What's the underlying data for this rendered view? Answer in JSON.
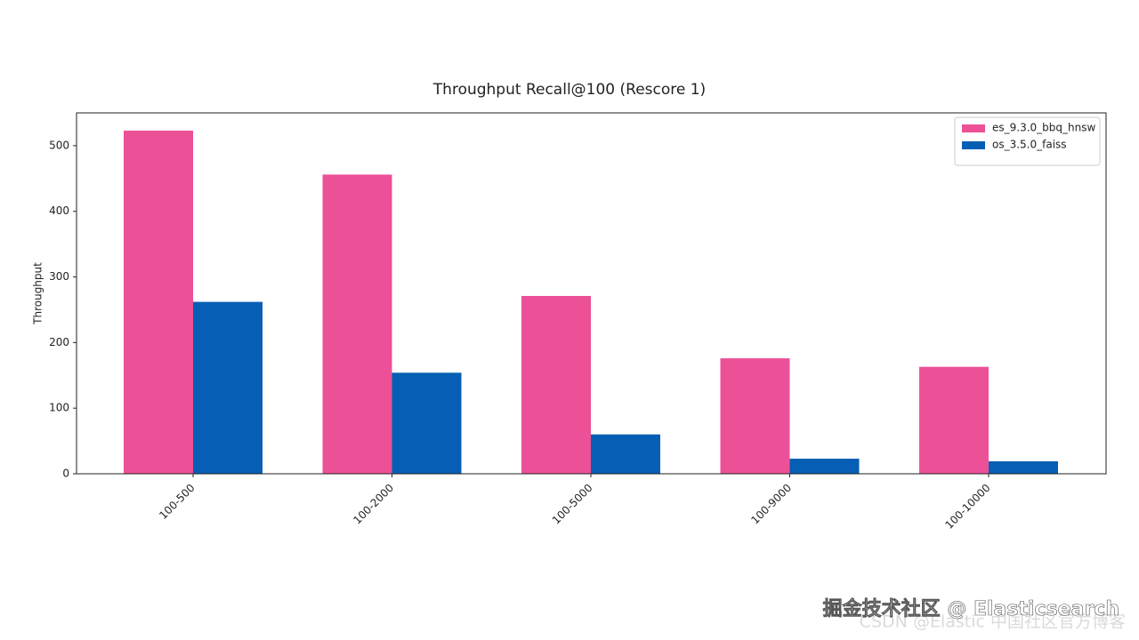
{
  "chart_data": {
    "type": "bar",
    "title": "Throughput Recall@100 (Rescore 1)",
    "y_label": "Throughput",
    "categories": [
      "100-500",
      "100-2000",
      "100-5000",
      "100-9000",
      "100-10000"
    ],
    "series": [
      {
        "name": "es_9.3.0_bbq_hnsw",
        "color": "#ec5198",
        "values": [
          523,
          456,
          271,
          176,
          163
        ]
      },
      {
        "name": "os_3.5.0_faiss",
        "color": "#065fb4",
        "values": [
          262,
          154,
          60,
          23,
          19
        ]
      }
    ],
    "ylim": [
      0,
      550
    ],
    "yticks": [
      0,
      100,
      200,
      300,
      400,
      500
    ],
    "grid": false,
    "legend": "upper right",
    "watermarks": [
      "掘金技术社区 @ Elasticsearch",
      "CSDN @Elastic 中国社区官方博客"
    ]
  }
}
